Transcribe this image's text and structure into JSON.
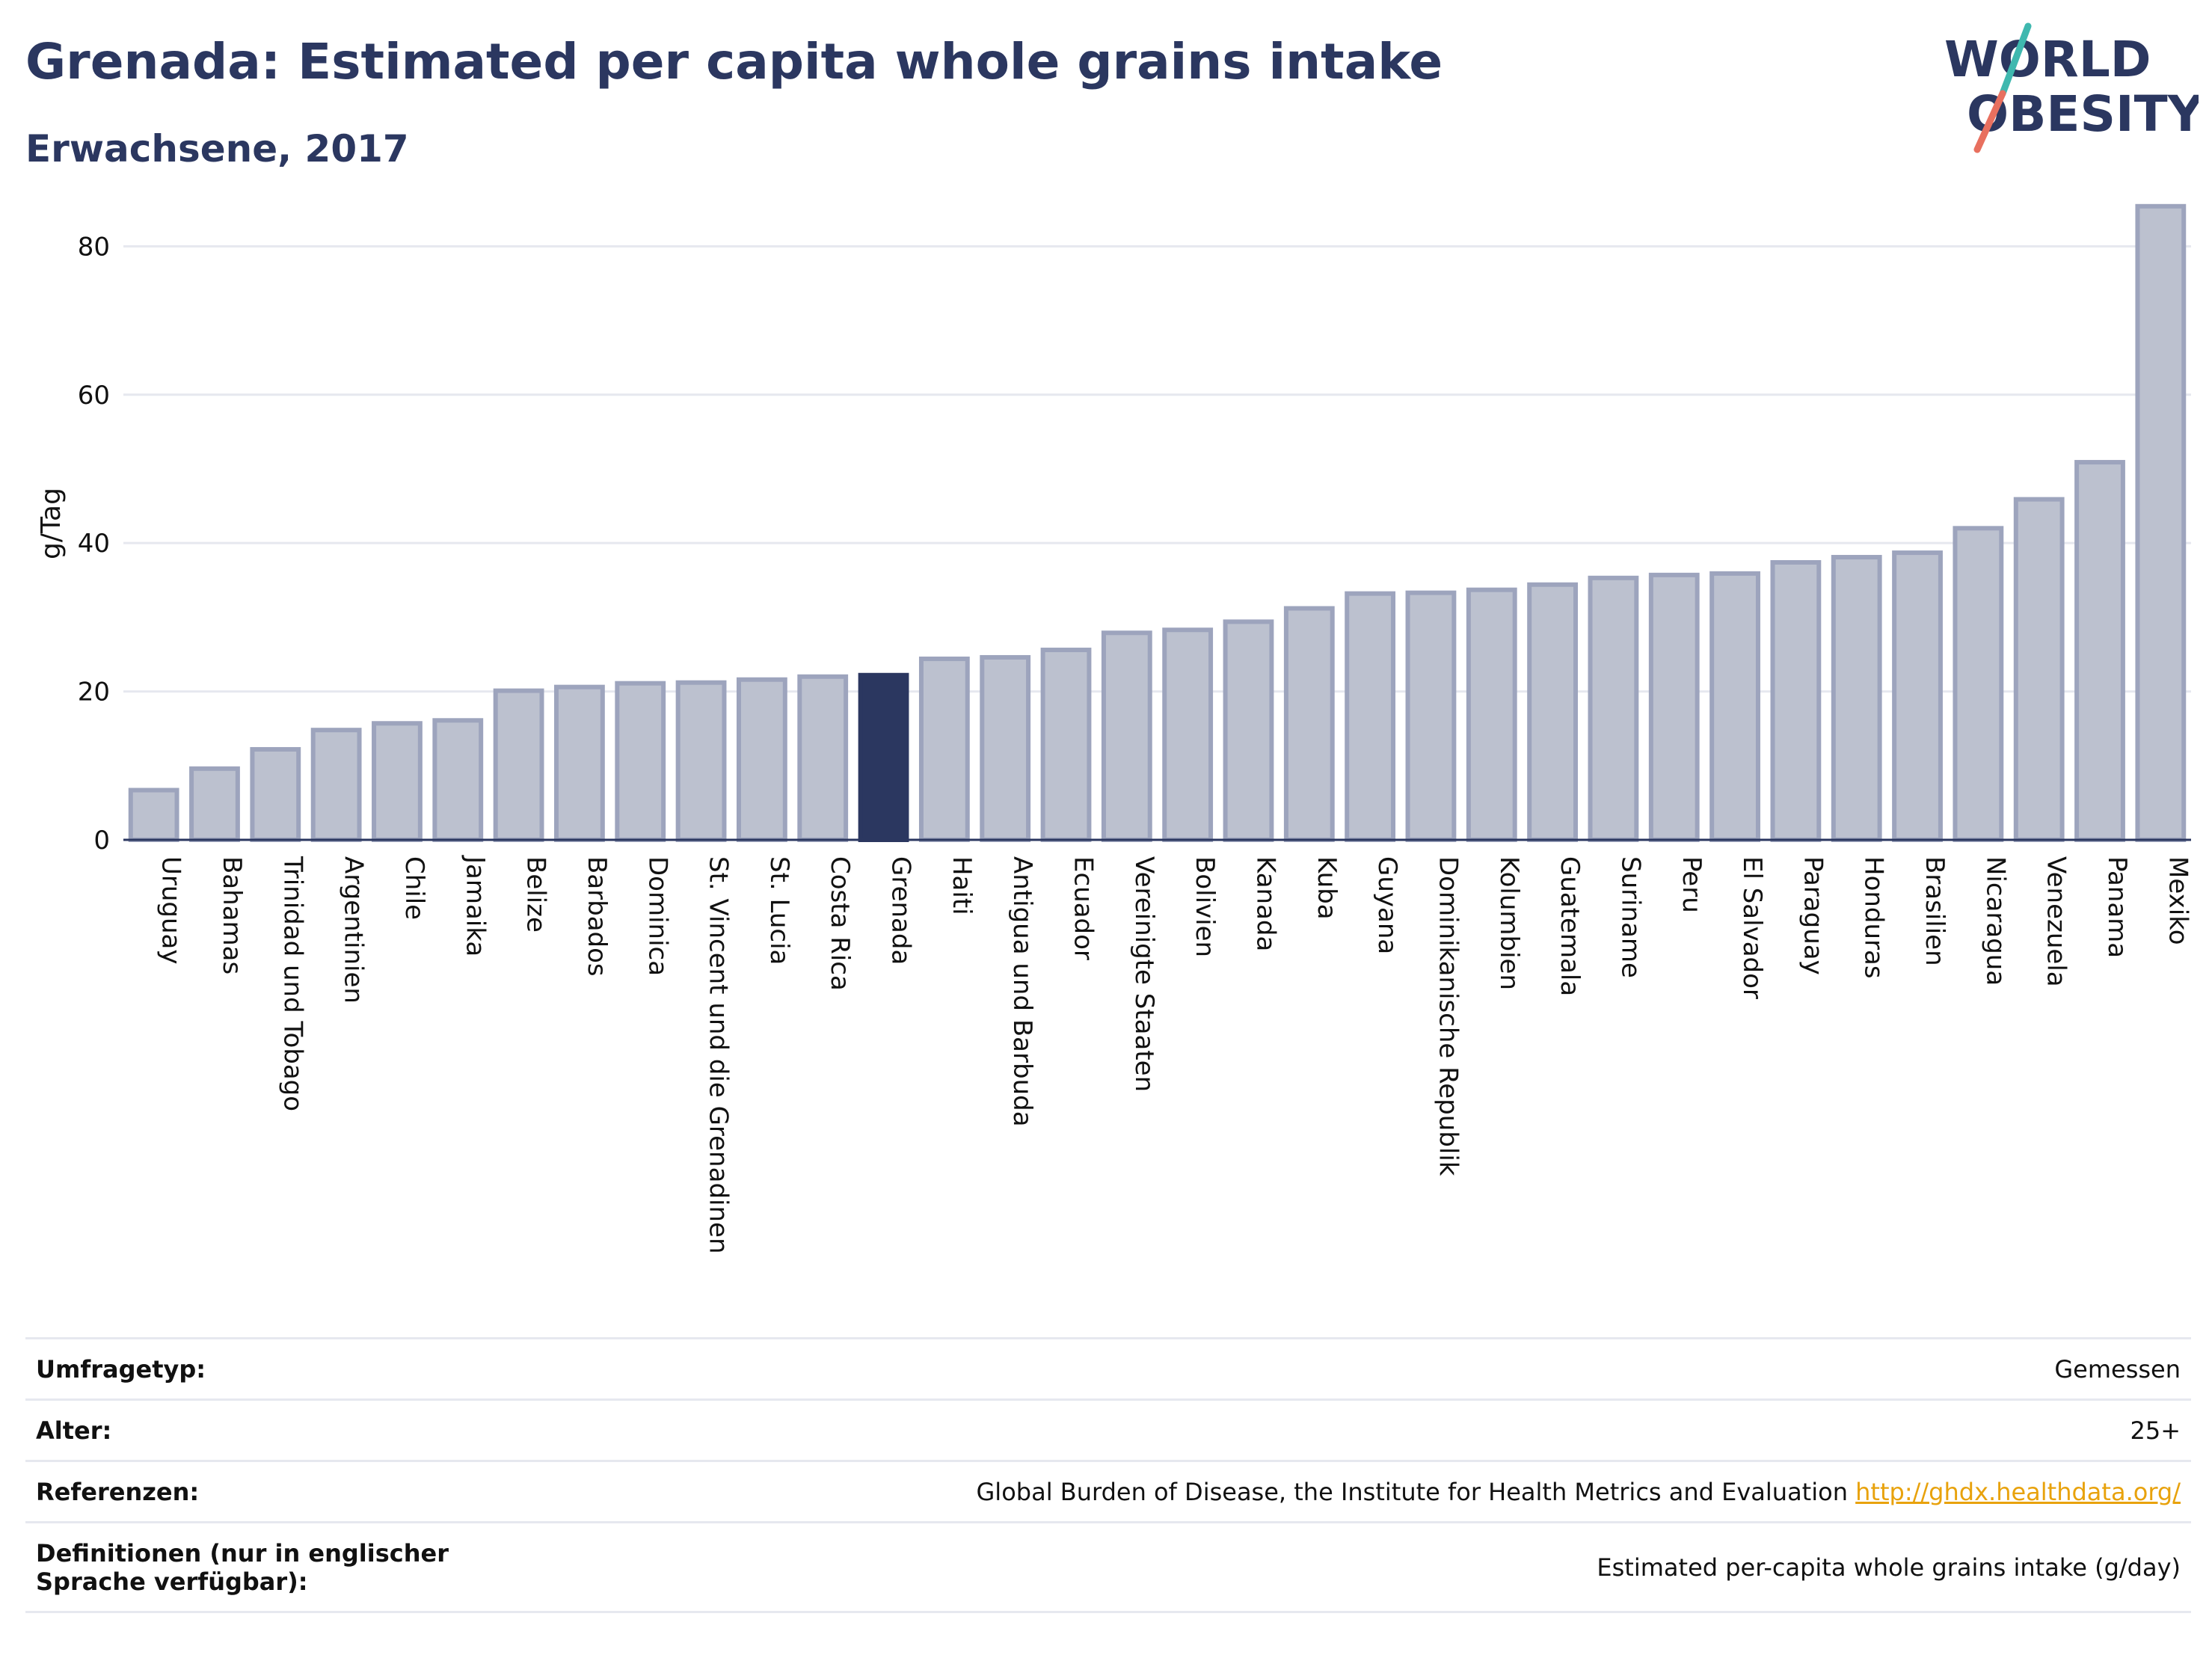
{
  "header": {
    "title": "Grenada: Estimated per capita whole grains intake",
    "subtitle": "Erwachsene, 2017",
    "logo_line1": "WORLD",
    "logo_line2": "OBESITY"
  },
  "colors": {
    "title": "#2b3760",
    "bar": "#bcc1cf",
    "bar_border": "#9da4bd",
    "bar_highlight": "#2b3760",
    "link": "#e8a20c",
    "logo_teal": "#3fb8af",
    "logo_coral": "#e8705f"
  },
  "chart_data": {
    "type": "bar",
    "title": "Grenada: Estimated per capita whole grains intake",
    "subtitle": "Erwachsene, 2017",
    "ylabel": "g/Tag",
    "xlabel": "",
    "ylim": [
      0,
      88
    ],
    "yticks": [
      0,
      20,
      40,
      60,
      80
    ],
    "grid": true,
    "highlight": "Grenada",
    "categories": [
      "Uruguay",
      "Bahamas",
      "Trinidad und Tobago",
      "Argentinien",
      "Chile",
      "Jamaika",
      "Belize",
      "Barbados",
      "Dominica",
      "St. Vincent und die Grenadinen",
      "St. Lucia",
      "Costa Rica",
      "Grenada",
      "Haiti",
      "Antigua und Barbuda",
      "Ecuador",
      "Vereinigte Staaten",
      "Bolivien",
      "Kanada",
      "Kuba",
      "Guyana",
      "Dominikanische Republik",
      "Kolumbien",
      "Guatemala",
      "Suriname",
      "Peru",
      "El Salvador",
      "Paraguay",
      "Honduras",
      "Brasilien",
      "Nicaragua",
      "Venezuela",
      "Panama",
      "Mexiko"
    ],
    "values": [
      6.7,
      9.6,
      12.2,
      14.8,
      15.7,
      16.1,
      20.1,
      20.6,
      21.1,
      21.2,
      21.6,
      22.0,
      22.2,
      24.4,
      24.6,
      25.6,
      27.9,
      28.3,
      29.4,
      31.2,
      33.2,
      33.3,
      33.7,
      34.4,
      35.3,
      35.7,
      35.9,
      37.4,
      38.1,
      38.7,
      42.0,
      45.9,
      50.9,
      85.4
    ]
  },
  "meta": {
    "rows": [
      {
        "key": "Umfragetyp:",
        "value": "Gemessen"
      },
      {
        "key": "Alter:",
        "value": "25+"
      },
      {
        "key": "Referenzen:",
        "value": "Global Burden of Disease, the Institute for Health Metrics and Evaluation",
        "link": "http://ghdx.healthdata.org/"
      },
      {
        "key": "Definitionen (nur in englischer Sprache verfügbar):",
        "value": "Estimated per-capita whole grains intake (g/day)"
      }
    ]
  }
}
